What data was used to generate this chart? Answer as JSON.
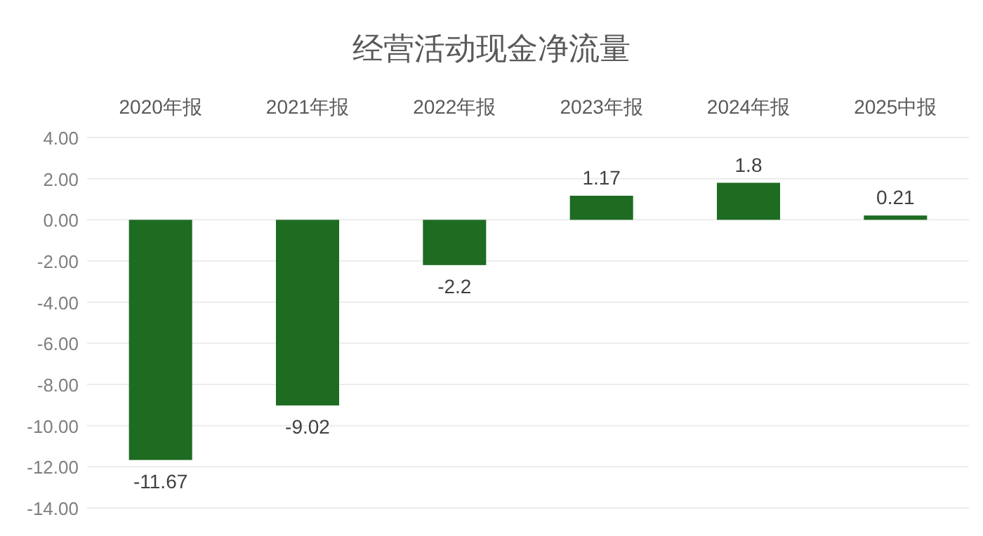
{
  "chart_data": {
    "type": "bar",
    "title": "经营活动现金净流量",
    "categories": [
      "2020年报",
      "2021年报",
      "2022年报",
      "2023年报",
      "2024年报",
      "2025中报"
    ],
    "series": [
      {
        "color": "#1e6b22",
        "values": [
          -11.67,
          -9.02,
          -2.2,
          1.17,
          1.8,
          0.21
        ]
      }
    ],
    "ylim": [
      -14,
      4
    ],
    "yticks": [
      {
        "value": 4,
        "label": "4.00"
      },
      {
        "value": 2,
        "label": "2.00"
      },
      {
        "value": 0,
        "label": "0.00"
      },
      {
        "value": -2,
        "label": "-2.00"
      },
      {
        "value": -4,
        "label": "-4.00"
      },
      {
        "value": -6,
        "label": "-6.00"
      },
      {
        "value": -8,
        "label": "-8.00"
      },
      {
        "value": -10,
        "label": "-10.00"
      },
      {
        "value": -12,
        "label": "-12.00"
      },
      {
        "value": -14,
        "label": "-14.00"
      }
    ],
    "grid": "y",
    "data_labels": true
  }
}
